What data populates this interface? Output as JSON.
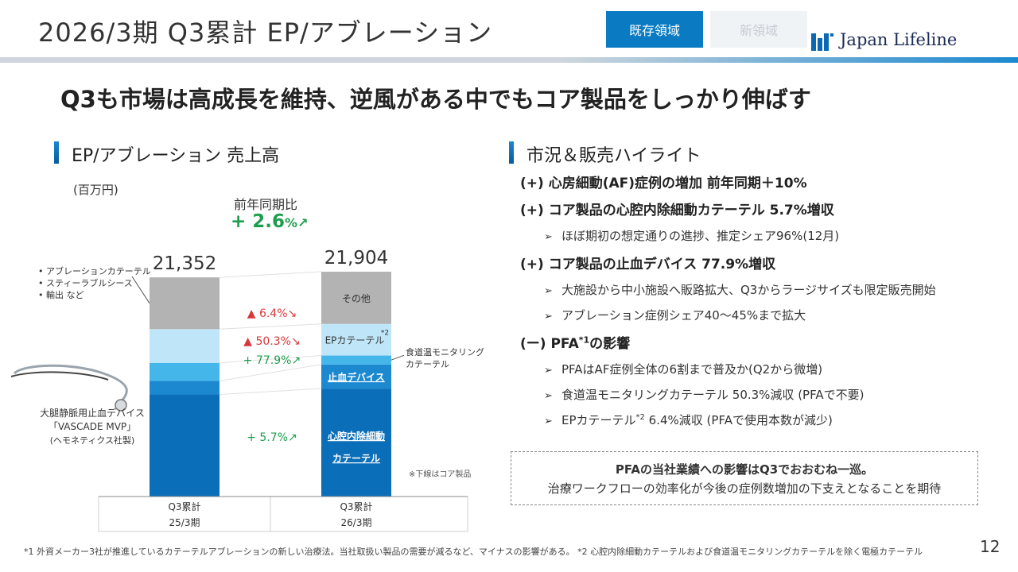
{
  "header": {
    "page_title": "2026/3期 Q3累計 EP/アブレーション",
    "tab_existing": "既存領域",
    "tab_new": "新領域",
    "logo_text": "Japan Lifeline",
    "accent_color": "#0a7bc2"
  },
  "headline": "Q3も市場は高成長を維持、逆風がある中でもコア製品をしっかり伸ばす",
  "left_section": {
    "title": "EP/アブレーション 売上高",
    "unit": "(百万円)",
    "yoy_label": "前年同期比",
    "yoy_value": "+ 2.6",
    "yoy_pct": "%↗",
    "legend_notes": [
      "アブレーションカテーテル",
      "スティーラブルシース",
      "輸出 など"
    ],
    "device_caption": {
      "line1": "大腿静脈用止血デバイス",
      "line2": "「VASCADE MVP」",
      "line3": "(ヘモネティクス社製)"
    },
    "core_note": "※下線はコア製品"
  },
  "chart_data": {
    "type": "bar",
    "stacked": true,
    "unit": "百万円",
    "categories": [
      {
        "line1": "Q3累計",
        "line2": "25/3期"
      },
      {
        "line1": "Q3累計",
        "line2": "26/3期"
      }
    ],
    "totals": [
      21352,
      21904
    ],
    "total_labels": [
      "21,352",
      "21,904"
    ],
    "series": [
      {
        "name": "心腔内除細動カテーテル",
        "label_line1": "心腔内除細動",
        "label_line2": "カテーテル",
        "color": "#0b6eb8",
        "values": [
          9950,
          10517
        ],
        "change": "+ 5.7%↗",
        "change_color": "#1e9e4d",
        "core": true
      },
      {
        "name": "止血デバイス",
        "label": "止血デバイス",
        "color": "#1b88cf",
        "values": [
          1320,
          2348
        ],
        "change": "+ 77.9%↗",
        "change_color": "#1e9e4d",
        "core": true
      },
      {
        "name": "食道温モニタリングカテーテル",
        "label_line1": "食道温モニタリング",
        "label_line2": "カテーテル",
        "color": "#45b6ea",
        "values": [
          1750,
          870
        ],
        "change": "▲ 50.3%↘",
        "change_color": "#d9383a",
        "core": false
      },
      {
        "name": "EPカテーテル",
        "label": "EPカテーテル",
        "label_sup": "*2",
        "color": "#bfe6f8",
        "values": [
          3290,
          3080
        ],
        "change": "▲ 6.4%↘",
        "change_color": "#d9383a",
        "core": false
      },
      {
        "name": "その他",
        "label": "その他",
        "color": "#b3b3b3",
        "values": [
          5042,
          5089
        ],
        "change": "",
        "core": false
      }
    ],
    "ylim": [
      0,
      24000
    ],
    "grid": false
  },
  "right_section": {
    "title": "市況＆販売ハイライト",
    "items": [
      {
        "text": "(+) 心房細動(AF)症例の増加 前年同期＋10%",
        "subs": []
      },
      {
        "text": "(+) コア製品の心腔内除細動カテーテル 5.7%増収",
        "subs": [
          {
            "text": "ほぼ期初の想定通りの進捗、推定シェア96%(12月)"
          }
        ]
      },
      {
        "text": "(+) コア製品の止血デバイス 77.9%増収",
        "subs": [
          {
            "text": "大施設から中小施設へ販路拡大、Q3からラージサイズも限定販売開始"
          },
          {
            "text": "アブレーション症例シェア40～45%まで拡大"
          }
        ]
      },
      {
        "text": "(ー) PFA",
        "sup": "*1",
        "text_after": "の影響",
        "subs": [
          {
            "text": "PFAはAF症例全体の6割まで普及か(Q2から微増)"
          },
          {
            "text": "食道温モニタリングカテーテル 50.3%減収 (PFAで不要)"
          },
          {
            "text": "EPカテーテル",
            "sup": "*2",
            "text_after": " 6.4%減収 (PFAで使用本数が減少)"
          }
        ]
      }
    ],
    "summary_line1": "PFAの当社業績への影響はQ3でおおむね一巡。",
    "summary_line2": "治療ワークフローの効率化が今後の症例数増加の下支えとなることを期待"
  },
  "footnote": "*1 外資メーカー3社が推進しているカテーテルアブレーションの新しい治療法。当社取扱い製品の需要が減るなど、マイナスの影響がある。 *2 心腔内除細動カテーテルおよび食道温モニタリングカテーテルを除く電極カテーテル",
  "page_number": "12"
}
